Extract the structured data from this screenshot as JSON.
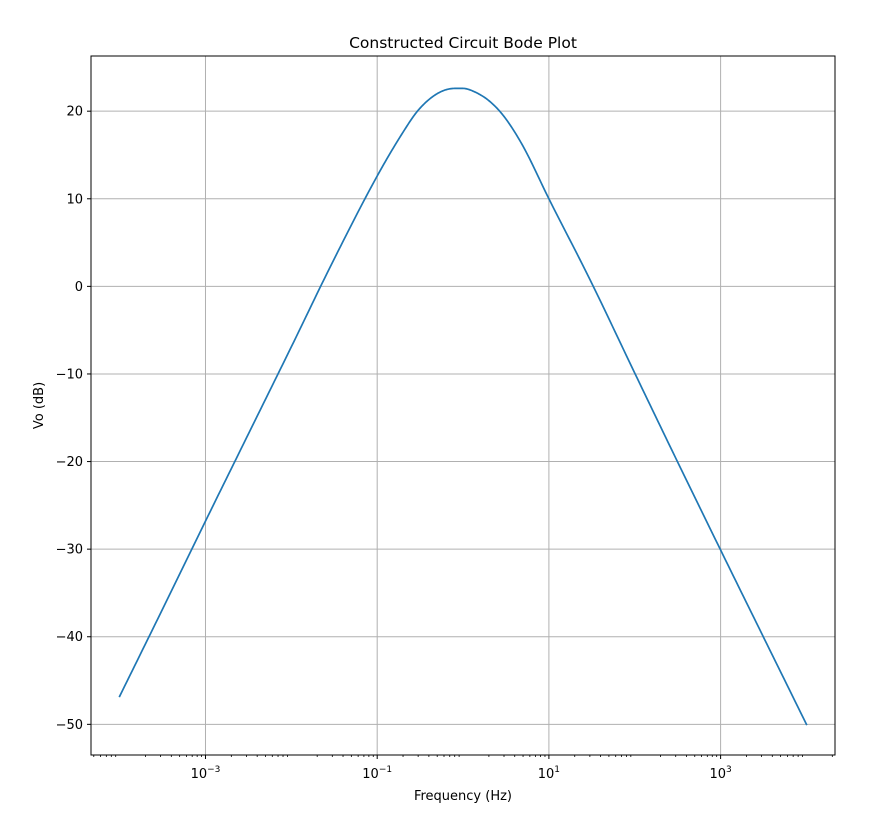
{
  "chart_data": {
    "type": "line",
    "title": "Constructed Circuit Bode Plot",
    "xlabel": "Frequency (Hz)",
    "ylabel": "Vo (dB)",
    "xscale": "log",
    "xlim": [
      4.64e-05,
      21500
    ],
    "ylim": [
      -53.5,
      26.3
    ],
    "grid": true,
    "line_color": "#1f77b4",
    "x_ticks": [
      {
        "value": 0.001,
        "base": "10",
        "exp": "−3"
      },
      {
        "value": 0.1,
        "base": "10",
        "exp": "−1"
      },
      {
        "value": 10,
        "base": "10",
        "exp": "1"
      },
      {
        "value": 1000,
        "base": "10",
        "exp": "3"
      }
    ],
    "y_ticks": [
      {
        "value": 20,
        "label": "20"
      },
      {
        "value": 10,
        "label": "10"
      },
      {
        "value": 0,
        "label": "0"
      },
      {
        "value": -10,
        "label": "−10"
      },
      {
        "value": -20,
        "label": "−20"
      },
      {
        "value": -30,
        "label": "−30"
      },
      {
        "value": -40,
        "label": "−40"
      },
      {
        "value": -50,
        "label": "−50"
      }
    ],
    "series": [
      {
        "x": [
          0.0001,
          0.0003,
          0.001,
          0.003,
          0.01,
          0.03,
          0.1,
          0.2,
          0.3,
          0.5,
          0.8,
          1,
          1.3,
          2,
          3,
          5,
          10,
          30,
          100,
          300,
          1000,
          3000,
          10000
        ],
        "y": [
          -46.8,
          -37.3,
          -26.8,
          -17.3,
          -6.9,
          2.7,
          12.6,
          17.6,
          20.1,
          22.0,
          22.6,
          22.6,
          22.3,
          21.2,
          19.4,
          16.0,
          10.0,
          0.8,
          -9.9,
          -19.6,
          -30.1,
          -39.6,
          -50.0
        ]
      }
    ]
  }
}
